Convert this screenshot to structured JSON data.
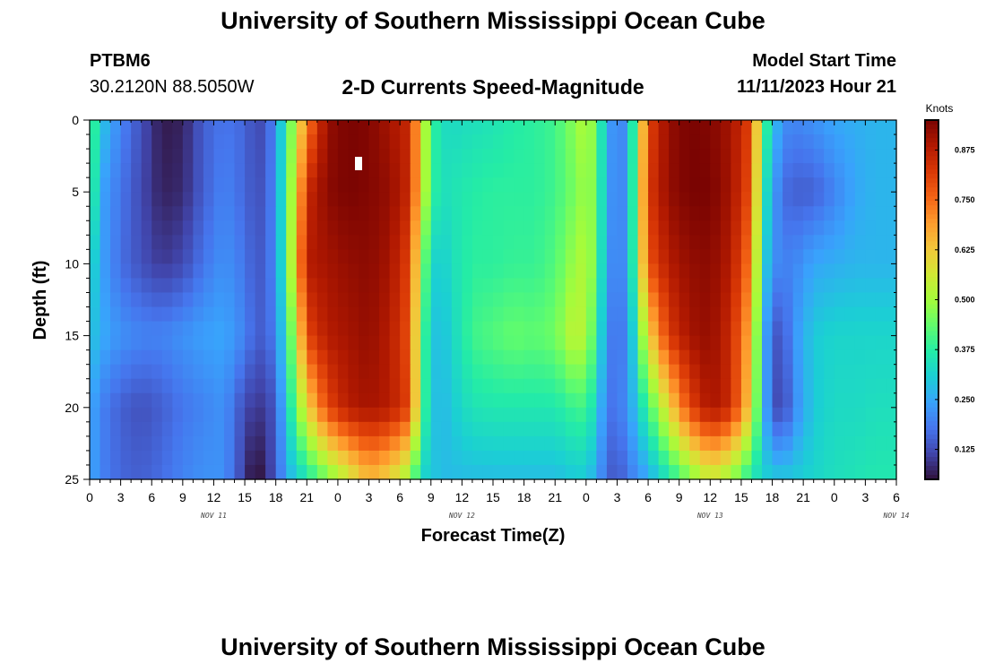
{
  "header": {
    "title": "University of Southern Mississippi Ocean Cube",
    "station": "PTBM6",
    "coords": "30.2120N  88.5050W",
    "chart_title": "2-D Currents Speed-Magnitude",
    "model_start_label": "Model Start Time",
    "model_start_value": "11/11/2023 Hour 21"
  },
  "footer": {
    "title": "University of Southern Mississippi Ocean Cube"
  },
  "colors": {
    "colormap": [
      "#30123b",
      "#4145ab",
      "#4675ed",
      "#39a2fc",
      "#1bcfd4",
      "#24eca6",
      "#61fc6c",
      "#a4fc3b",
      "#d1e834",
      "#f3c63a",
      "#fe9b2d",
      "#f36315",
      "#d93806",
      "#b11901",
      "#7a0402"
    ],
    "marker": "#ffffff"
  },
  "chart_data": {
    "type": "heatmap",
    "title": "2-D Currents Speed-Magnitude",
    "xlabel": "Forecast Time(Z)",
    "ylabel": "Depth (ft)",
    "colorbar_label": "Knots",
    "x_ticks": [
      "0",
      "3",
      "6",
      "9",
      "12",
      "15",
      "18",
      "21",
      "0",
      "3",
      "6",
      "9",
      "12",
      "15",
      "18",
      "21",
      "0",
      "3",
      "6",
      "9",
      "12",
      "15",
      "18",
      "21",
      "0",
      "3",
      "6"
    ],
    "x_day_labels": [
      {
        "label": "NOV 11",
        "at_hour": 12
      },
      {
        "label": "NOV 12",
        "at_hour": 36
      },
      {
        "label": "NOV 13",
        "at_hour": 60
      },
      {
        "label": "NOV 14",
        "at_hour": 78
      }
    ],
    "x_range_hours": [
      0,
      78
    ],
    "y_ticks": [
      0,
      5,
      10,
      15,
      20,
      25
    ],
    "ylim": [
      0,
      25
    ],
    "colorbar_ticks": [
      0.125,
      0.25,
      0.375,
      0.5,
      0.625,
      0.75,
      0.875
    ],
    "colorbar_tick_labels": [
      "0.125",
      "0.250",
      "0.375",
      "0.500",
      "0.625",
      "0.750",
      "0.875"
    ],
    "color_range": [
      0.05,
      0.95
    ],
    "depths_ft": [
      0,
      5,
      10,
      15,
      20,
      25
    ],
    "hours": [
      0,
      1,
      3,
      5,
      7,
      9,
      11,
      13,
      15,
      16,
      17,
      18,
      19,
      20,
      21,
      23,
      25,
      27,
      29,
      31,
      32,
      33,
      34,
      35,
      37,
      39,
      41,
      43,
      45,
      47,
      48,
      49,
      50,
      51,
      52,
      54,
      56,
      58,
      60,
      62,
      64,
      65,
      66,
      67,
      68,
      70,
      72,
      74,
      76,
      78
    ],
    "speed_knots": [
      [
        0.45,
        0.3,
        0.2,
        0.13,
        0.06,
        0.07,
        0.15,
        0.18,
        0.16,
        0.12,
        0.13,
        0.22,
        0.38,
        0.55,
        0.72,
        0.92,
        0.95,
        0.94,
        0.9,
        0.85,
        0.6,
        0.4,
        0.34,
        0.33,
        0.34,
        0.35,
        0.37,
        0.38,
        0.4,
        0.48,
        0.52,
        0.45,
        0.25,
        0.2,
        0.22,
        0.8,
        0.92,
        0.95,
        0.94,
        0.9,
        0.8,
        0.45,
        0.3,
        0.22,
        0.2,
        0.22,
        0.25,
        0.26,
        0.27,
        0.27
      ],
      [
        0.45,
        0.25,
        0.18,
        0.12,
        0.07,
        0.08,
        0.15,
        0.2,
        0.16,
        0.13,
        0.14,
        0.22,
        0.4,
        0.6,
        0.85,
        0.93,
        0.95,
        0.94,
        0.92,
        0.85,
        0.6,
        0.4,
        0.34,
        0.35,
        0.37,
        0.38,
        0.38,
        0.38,
        0.4,
        0.46,
        0.5,
        0.45,
        0.24,
        0.2,
        0.22,
        0.82,
        0.92,
        0.95,
        0.95,
        0.9,
        0.78,
        0.4,
        0.25,
        0.17,
        0.15,
        0.15,
        0.2,
        0.25,
        0.27,
        0.27
      ],
      [
        0.35,
        0.25,
        0.17,
        0.13,
        0.1,
        0.12,
        0.18,
        0.22,
        0.18,
        0.14,
        0.15,
        0.22,
        0.4,
        0.65,
        0.88,
        0.9,
        0.92,
        0.93,
        0.9,
        0.8,
        0.5,
        0.33,
        0.3,
        0.34,
        0.38,
        0.38,
        0.39,
        0.39,
        0.42,
        0.5,
        0.52,
        0.45,
        0.22,
        0.2,
        0.22,
        0.78,
        0.88,
        0.92,
        0.93,
        0.88,
        0.72,
        0.35,
        0.22,
        0.2,
        0.2,
        0.25,
        0.26,
        0.27,
        0.27,
        0.27
      ],
      [
        0.3,
        0.26,
        0.22,
        0.2,
        0.2,
        0.22,
        0.24,
        0.25,
        0.2,
        0.15,
        0.15,
        0.2,
        0.35,
        0.55,
        0.8,
        0.88,
        0.9,
        0.92,
        0.88,
        0.78,
        0.45,
        0.3,
        0.28,
        0.32,
        0.4,
        0.42,
        0.44,
        0.43,
        0.45,
        0.55,
        0.5,
        0.4,
        0.2,
        0.18,
        0.2,
        0.6,
        0.82,
        0.9,
        0.92,
        0.85,
        0.65,
        0.3,
        0.15,
        0.13,
        0.22,
        0.3,
        0.32,
        0.32,
        0.32,
        0.32
      ],
      [
        0.26,
        0.2,
        0.15,
        0.13,
        0.15,
        0.18,
        0.2,
        0.22,
        0.12,
        0.1,
        0.1,
        0.15,
        0.3,
        0.45,
        0.6,
        0.8,
        0.88,
        0.9,
        0.88,
        0.8,
        0.45,
        0.3,
        0.27,
        0.3,
        0.35,
        0.36,
        0.36,
        0.36,
        0.36,
        0.4,
        0.4,
        0.32,
        0.18,
        0.18,
        0.22,
        0.4,
        0.6,
        0.8,
        0.9,
        0.85,
        0.6,
        0.3,
        0.15,
        0.1,
        0.2,
        0.3,
        0.33,
        0.33,
        0.34,
        0.34
      ],
      [
        0.26,
        0.2,
        0.16,
        0.15,
        0.17,
        0.2,
        0.22,
        0.22,
        0.1,
        0.03,
        0.08,
        0.14,
        0.25,
        0.3,
        0.35,
        0.45,
        0.55,
        0.65,
        0.6,
        0.48,
        0.32,
        0.3,
        0.28,
        0.28,
        0.28,
        0.28,
        0.28,
        0.28,
        0.28,
        0.3,
        0.3,
        0.25,
        0.16,
        0.13,
        0.18,
        0.25,
        0.35,
        0.45,
        0.55,
        0.48,
        0.35,
        0.32,
        0.3,
        0.3,
        0.3,
        0.32,
        0.34,
        0.35,
        0.36,
        0.36
      ]
    ]
  }
}
